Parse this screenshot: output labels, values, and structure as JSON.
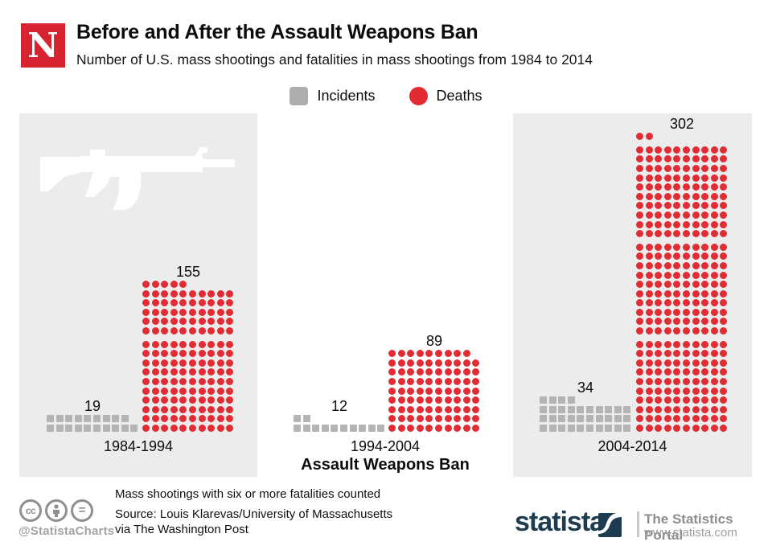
{
  "header": {
    "logo_letter": "N",
    "title": "Before and After the Assault Weapons Ban",
    "subtitle": "Number of U.S. mass shootings and fatalities in mass shootings from 1984 to 2014"
  },
  "legend": {
    "incidents_label": "Incidents",
    "deaths_label": "Deaths"
  },
  "colors": {
    "deaths_red": "#e22b33",
    "incidents_gray": "#b4b4b4",
    "panel_bg": "#ececec",
    "newsweek_red": "#d7232f",
    "statista_navy": "#1d3c50"
  },
  "chart_data": {
    "type": "pictogram",
    "title": "Before and After the Assault Weapons Ban",
    "subtitle": "Number of U.S. mass shootings and fatalities in mass shootings from 1984 to 2014",
    "unit_per_symbol": 1,
    "columns_per_row": 10,
    "legend": [
      "Incidents",
      "Deaths"
    ],
    "categories": [
      "1984-1994",
      "1994-2004",
      "2004-2014"
    ],
    "series": [
      {
        "name": "Incidents",
        "symbol": "square",
        "values": [
          19,
          12,
          34
        ]
      },
      {
        "name": "Deaths",
        "symbol": "circle",
        "values": [
          155,
          89,
          302
        ]
      }
    ],
    "panels": [
      {
        "period": "1984-1994",
        "incidents": 19,
        "deaths": 155
      },
      {
        "period": "1994-2004",
        "incidents": 12,
        "deaths": 89,
        "annotation": "Assault Weapons Ban"
      },
      {
        "period": "2004-2014",
        "incidents": 34,
        "deaths": 302
      }
    ]
  },
  "footer": {
    "note": "Mass shootings with six or more fatalities counted",
    "source_line1": "Source: Louis Klarevas/University of Massachusetts",
    "source_line2": "via The Washington Post",
    "credit": "@StatistaCharts",
    "brand": "statista",
    "brand_tagline": "The Statistics Portal",
    "brand_url": "www.statista.com"
  }
}
